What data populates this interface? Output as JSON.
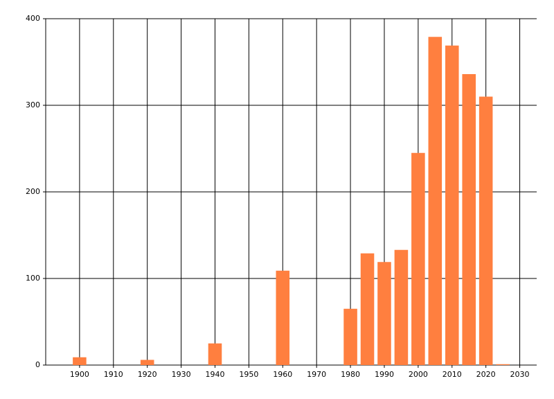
{
  "chart_data": {
    "type": "bar",
    "x": [
      1900,
      1920,
      1940,
      1960,
      1980,
      1985,
      1990,
      1995,
      2000,
      2005,
      2010,
      2015,
      2020,
      2025
    ],
    "values": [
      9,
      6,
      25,
      109,
      65,
      129,
      119,
      133,
      245,
      379,
      369,
      336,
      310,
      1
    ],
    "color": "#ff7f3f",
    "xlim": [
      1890,
      2035
    ],
    "xticks": [
      1900,
      1910,
      1920,
      1930,
      1940,
      1950,
      1960,
      1970,
      1980,
      1990,
      2000,
      2010,
      2020,
      2030
    ],
    "ylim": [
      0,
      400
    ],
    "yticks": [
      0,
      100,
      200,
      300,
      400
    ],
    "grid": true
  }
}
